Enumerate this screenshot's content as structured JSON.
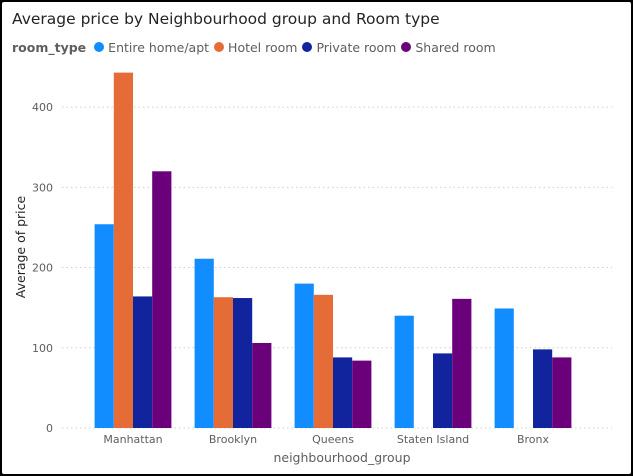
{
  "chart_data": {
    "type": "bar",
    "title": "Average price by Neighbourhood group and Room type",
    "legend_title": "room_type",
    "legend_position": "top-left",
    "xlabel": "neighbourhood_group",
    "ylabel": "Average of price",
    "ylim": [
      0,
      450
    ],
    "yticks": [
      0,
      100,
      200,
      300,
      400
    ],
    "grid": true,
    "categories": [
      "Manhattan",
      "Brooklyn",
      "Queens",
      "Staten Island",
      "Bronx"
    ],
    "series": [
      {
        "name": "Entire home/apt",
        "color": "#118DFF",
        "values": [
          254,
          211,
          180,
          140,
          149
        ]
      },
      {
        "name": "Hotel room",
        "color": "#E66C37",
        "values": [
          443,
          163,
          166,
          null,
          null
        ]
      },
      {
        "name": "Private room",
        "color": "#12239E",
        "values": [
          164,
          162,
          88,
          93,
          98
        ]
      },
      {
        "name": "Shared room",
        "color": "#6B007B",
        "values": [
          320,
          106,
          84,
          161,
          88
        ]
      }
    ]
  }
}
